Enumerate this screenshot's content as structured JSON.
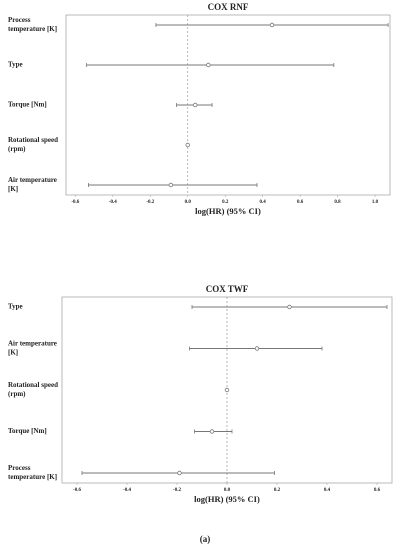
{
  "chart_data": [
    {
      "type": "forest",
      "title": "COX RNF",
      "x_label": "log(HR) (95% CI)",
      "categories": [
        [
          "Process",
          "temperature [K]"
        ],
        [
          "Type"
        ],
        [
          "Torque [Nm]"
        ],
        [
          "Rotational speed",
          "(rpm)"
        ],
        [
          "Air temperature",
          "[K]"
        ]
      ],
      "estimates": [
        0.45,
        0.11,
        0.04,
        0.0,
        -0.09
      ],
      "lower": [
        -0.17,
        -0.54,
        -0.06,
        0.0,
        -0.53
      ],
      "upper": [
        1.07,
        0.78,
        0.13,
        0.0,
        0.37
      ],
      "xlim": [
        -0.65,
        1.08
      ],
      "xticks": [
        -0.6,
        -0.4,
        -0.2,
        {
          "value": 0,
          "label": "0.0"
        },
        0.2,
        0.4,
        0.6,
        0.8,
        {
          "value": 1,
          "label": "1.0"
        }
      ],
      "reference_line": 0,
      "color": "#777777"
    },
    {
      "type": "forest",
      "title": "COX TWF",
      "x_label": "log(HR) (95% CI)",
      "categories": [
        [
          "Type"
        ],
        [
          "Air temperature",
          "[K]"
        ],
        [
          "Rotational speed",
          "(rpm)"
        ],
        [
          "Torque [Nm]"
        ],
        [
          "Process",
          "temperature [K]"
        ]
      ],
      "estimates": [
        0.25,
        0.12,
        0.0,
        -0.06,
        -0.19
      ],
      "lower": [
        -0.14,
        -0.15,
        0.0,
        -0.13,
        -0.58
      ],
      "upper": [
        0.64,
        0.38,
        0.0,
        0.02,
        0.19
      ],
      "xlim": [
        -0.66,
        0.66
      ],
      "xticks": [
        -0.6,
        -0.4,
        -0.2,
        {
          "value": 0,
          "label": "0.0"
        },
        0.2,
        0.4,
        0.6
      ],
      "reference_line": 0,
      "color": "#777777"
    }
  ],
  "caption": "(a)"
}
